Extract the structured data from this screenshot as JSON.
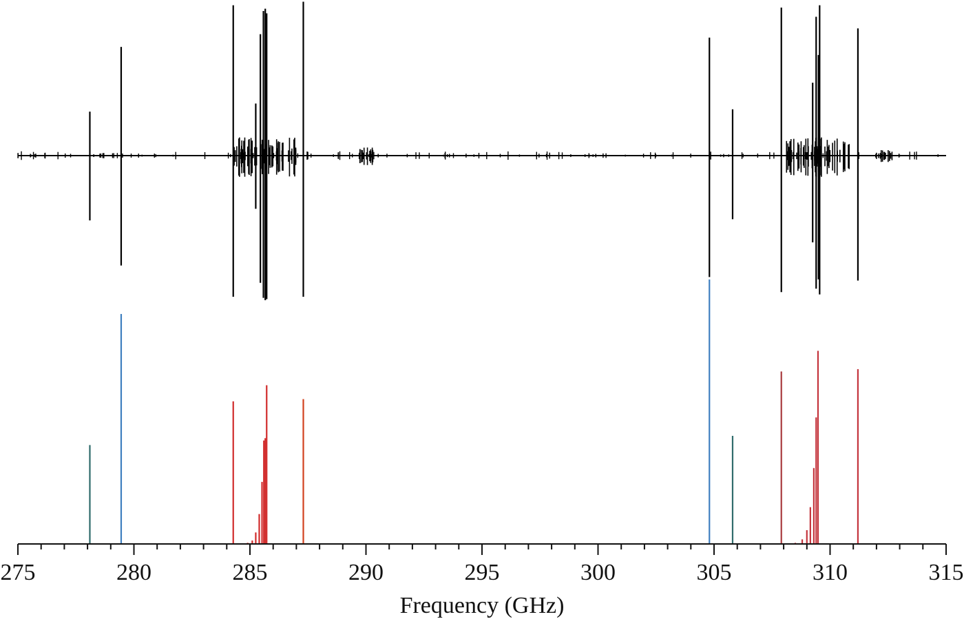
{
  "chart_data": {
    "type": "stick-spectrum",
    "xlabel": "Frequency (GHz)",
    "xlim": [
      275,
      315
    ],
    "major_ticks": [
      275,
      280,
      285,
      290,
      295,
      300,
      305,
      310,
      315
    ],
    "minor_tick_step": 1,
    "grid": false,
    "legend": "none",
    "observed_spectrum": {
      "color": "#000000",
      "lines": [
        {
          "x": 278.1,
          "up": 0.38,
          "down": 0.56
        },
        {
          "x": 279.45,
          "up": 0.94,
          "down": 0.95
        },
        {
          "x": 284.28,
          "up": 1.3,
          "down": 1.22
        },
        {
          "x": 285.25,
          "up": 0.45,
          "down": 0.46
        },
        {
          "x": 285.45,
          "up": 1.05,
          "down": 1.1
        },
        {
          "x": 285.58,
          "up": 1.25,
          "down": 1.23
        },
        {
          "x": 285.66,
          "up": 1.27,
          "down": 1.25
        },
        {
          "x": 285.72,
          "up": 1.23,
          "down": 1.24
        },
        {
          "x": 287.3,
          "up": 1.33,
          "down": 1.22
        },
        {
          "x": 304.8,
          "up": 1.02,
          "down": 1.05
        },
        {
          "x": 305.8,
          "up": 0.4,
          "down": 0.55
        },
        {
          "x": 307.9,
          "up": 1.28,
          "down": 1.18
        },
        {
          "x": 309.25,
          "up": 0.63,
          "down": 0.75
        },
        {
          "x": 309.4,
          "up": 1.2,
          "down": 1.15
        },
        {
          "x": 309.5,
          "up": 0.87,
          "down": 1.07
        },
        {
          "x": 309.55,
          "up": 1.3,
          "down": 1.2
        },
        {
          "x": 311.2,
          "up": 1.1,
          "down": 1.08
        }
      ]
    },
    "predicted_spectrum": {
      "lines": [
        {
          "x": 278.1,
          "intensity": 0.43,
          "color": "#2f6b6b"
        },
        {
          "x": 279.45,
          "intensity": 1.0,
          "color": "#3f7fbf"
        },
        {
          "x": 284.28,
          "intensity": 0.62,
          "color": "#d12b2b"
        },
        {
          "x": 284.9,
          "intensity": 0.005,
          "color": "#d12b2b"
        },
        {
          "x": 285.1,
          "intensity": 0.015,
          "color": "#d12b2b"
        },
        {
          "x": 285.25,
          "intensity": 0.05,
          "color": "#d12b2b"
        },
        {
          "x": 285.4,
          "intensity": 0.13,
          "color": "#d12b2b"
        },
        {
          "x": 285.52,
          "intensity": 0.27,
          "color": "#d12b2b"
        },
        {
          "x": 285.6,
          "intensity": 0.45,
          "color": "#d12b2b"
        },
        {
          "x": 285.66,
          "intensity": 0.46,
          "color": "#d12b2b"
        },
        {
          "x": 285.72,
          "intensity": 0.69,
          "color": "#d12b2b"
        },
        {
          "x": 287.3,
          "intensity": 0.63,
          "color": "#d2421e"
        },
        {
          "x": 304.8,
          "intensity": 1.15,
          "color": "#3f7fbf"
        },
        {
          "x": 305.8,
          "intensity": 0.47,
          "color": "#2f6b6b"
        },
        {
          "x": 307.9,
          "intensity": 0.75,
          "color": "#a83a3e"
        },
        {
          "x": 308.5,
          "intensity": 0.005,
          "color": "#c4343c"
        },
        {
          "x": 308.8,
          "intensity": 0.02,
          "color": "#c4343c"
        },
        {
          "x": 309.0,
          "intensity": 0.06,
          "color": "#c4343c"
        },
        {
          "x": 309.15,
          "intensity": 0.16,
          "color": "#c4343c"
        },
        {
          "x": 309.3,
          "intensity": 0.33,
          "color": "#c4343c"
        },
        {
          "x": 309.4,
          "intensity": 0.55,
          "color": "#c4343c"
        },
        {
          "x": 309.48,
          "intensity": 0.84,
          "color": "#c4343c"
        },
        {
          "x": 311.2,
          "intensity": 0.76,
          "color": "#c4343c"
        }
      ]
    }
  }
}
